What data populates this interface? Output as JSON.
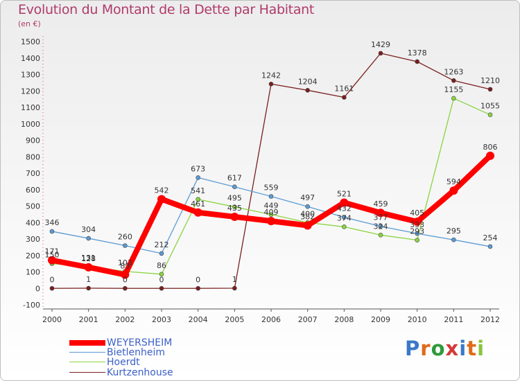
{
  "title": "Evolution du Montant de la Dette par Habitant",
  "subtitle": "(en €)",
  "logo_text": "Proxiti",
  "chart_data": {
    "type": "line",
    "title": "Evolution du Montant de la Dette par Habitant",
    "subtitle": "(en €)",
    "ylim": [
      -100,
      1500
    ],
    "ytick_step": 100,
    "grid": false,
    "legend_position": "bottom-left",
    "categories": [
      "2000",
      "2001",
      "2002",
      "2003",
      "2004",
      "2005",
      "2006",
      "2007",
      "2008",
      "2009",
      "2010",
      "2011",
      "2012"
    ],
    "series": [
      {
        "name": "WEYERSHEIM",
        "color": "#ff0000",
        "values": [
          171,
          128,
          83,
          542,
          461,
          435,
          409,
          382,
          521,
          459,
          405,
          594,
          806
        ],
        "labels": [
          "171",
          "128",
          "83",
          "542",
          "461",
          "435",
          "409",
          "382",
          "521",
          "459",
          "405",
          "594",
          "806"
        ]
      },
      {
        "name": "Bietlenheim",
        "color": "#5b9bd5",
        "values": [
          346,
          304,
          260,
          212,
          673,
          617,
          559,
          497,
          432,
          377,
          333,
          295,
          254
        ],
        "labels": [
          "346",
          "304",
          "260",
          "212",
          "673",
          "617",
          "559",
          "497",
          "432",
          "377",
          "333",
          "295",
          "254"
        ]
      },
      {
        "name": "Hoerdt",
        "color": "#8ad441",
        "values": [
          150,
          131,
          103,
          86,
          541,
          495,
          449,
          400,
          374,
          324,
          293,
          1155,
          1055
        ],
        "labels": [
          "150",
          "131",
          "103",
          "86",
          "541",
          "495",
          "449",
          "400",
          "374",
          "324",
          "293",
          "1155",
          "1055"
        ]
      },
      {
        "name": "Kurtzenhouse",
        "color": "#7a1e1e",
        "values": [
          0,
          1,
          0,
          0,
          0,
          1,
          1242,
          1204,
          1161,
          1429,
          1378,
          1263,
          1210
        ],
        "labels": [
          "0",
          "1",
          "0",
          "0",
          "0",
          "1",
          "1242",
          "1204",
          "1161",
          "1429",
          "1378",
          "1263",
          "1210"
        ]
      }
    ]
  }
}
